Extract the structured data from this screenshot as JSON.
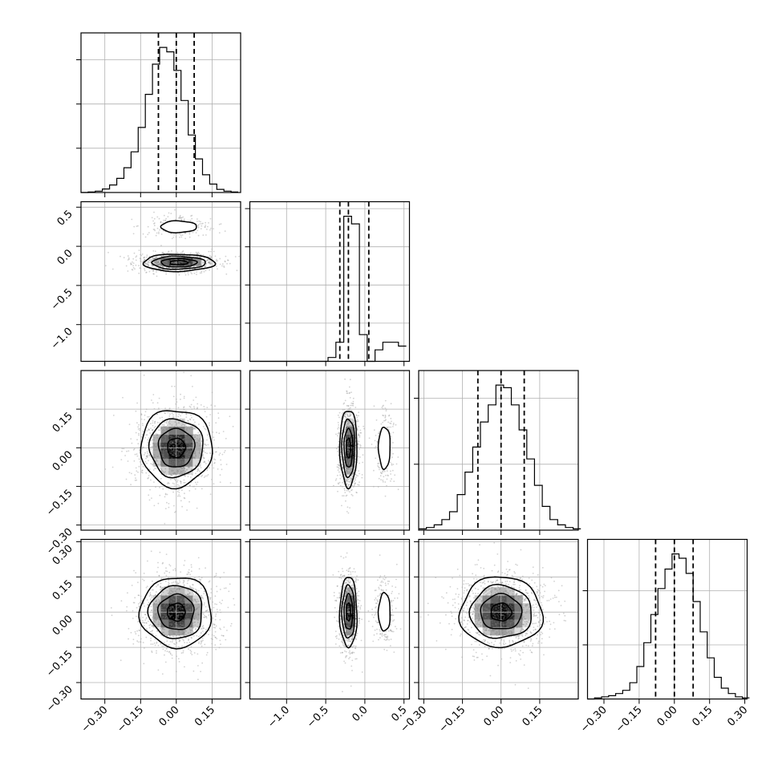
{
  "chart_data": {
    "type": "corner",
    "grid": true,
    "quantiles": [
      0.16,
      0.5,
      0.84
    ],
    "parameters": [
      {
        "index": 0,
        "range": [
          -0.4,
          0.27
        ],
        "x_ticks": [
          -0.3,
          -0.15,
          0.0,
          0.15
        ],
        "x_tick_labels": [
          "−0.30",
          "−0.15",
          "0.00",
          "0.15"
        ],
        "y_ticks": [],
        "y_tick_labels": []
      },
      {
        "index": 1,
        "range": [
          -1.47,
          0.57
        ],
        "x_ticks": [
          -1.0,
          -0.5,
          0.0,
          0.5
        ],
        "x_tick_labels": [
          "−1.0",
          "−0.5",
          "0.0",
          "0.5"
        ],
        "y_ticks": [
          0.5,
          0.0,
          -0.5,
          -1.0
        ],
        "y_tick_labels": [
          "0.5",
          "0.0",
          "−0.5",
          "−1.0"
        ]
      },
      {
        "index": 2,
        "range": [
          -0.32,
          0.3
        ],
        "x_ticks": [
          -0.3,
          -0.15,
          0.0,
          0.15
        ],
        "x_tick_labels": [
          "−0.30",
          "−0.15",
          "0.00",
          "0.15"
        ],
        "y_ticks": [
          0.15,
          0.0,
          -0.15,
          -0.3
        ],
        "y_tick_labels": [
          "0.15",
          "0.00",
          "−0.15",
          "−0.30"
        ]
      },
      {
        "index": 3,
        "range": [
          -0.37,
          0.31
        ],
        "x_ticks": [
          -0.3,
          -0.15,
          0.0,
          0.15,
          0.3
        ],
        "x_tick_labels": [
          "−0.30",
          "−0.15",
          "0.00",
          "0.15",
          "0.30"
        ],
        "y_ticks": [
          0.3,
          0.15,
          0.0,
          -0.15,
          -0.3
        ],
        "y_tick_labels": [
          "0.30",
          "0.15",
          "0.00",
          "−0.15",
          "−0.30"
        ]
      }
    ],
    "histograms": [
      {
        "param": 0,
        "quantile_values": [
          -0.075,
          0.0,
          0.075
        ],
        "bin_edges": [
          -0.4,
          -0.37,
          -0.34,
          -0.31,
          -0.28,
          -0.25,
          -0.22,
          -0.19,
          -0.16,
          -0.13,
          -0.1,
          -0.07,
          -0.04,
          -0.01,
          0.02,
          0.05,
          0.08,
          0.11,
          0.14,
          0.17,
          0.2,
          0.23,
          0.26
        ],
        "counts": [
          0,
          1,
          3,
          8,
          17,
          32,
          56,
          92,
          147,
          222,
          290,
          328,
          318,
          276,
          208,
          130,
          76,
          40,
          19,
          7,
          3,
          1
        ]
      },
      {
        "param": 1,
        "quantile_values": [
          -0.32,
          -0.21,
          0.05
        ],
        "bin_edges": [
          -1.47,
          -1.37,
          -1.27,
          -1.17,
          -1.07,
          -0.97,
          -0.87,
          -0.77,
          -0.67,
          -0.57,
          -0.47,
          -0.37,
          -0.27,
          -0.17,
          -0.07,
          0.03,
          0.13,
          0.23,
          0.33,
          0.43,
          0.53
        ],
        "counts": [
          0,
          0,
          0,
          0,
          0,
          0,
          0,
          0,
          0,
          0,
          1,
          5,
          38,
          36,
          7,
          0,
          3,
          5,
          5,
          4
        ]
      },
      {
        "param": 2,
        "quantile_values": [
          -0.09,
          0.0,
          0.09
        ],
        "bin_edges": [
          -0.32,
          -0.29,
          -0.26,
          -0.23,
          -0.2,
          -0.17,
          -0.14,
          -0.11,
          -0.08,
          -0.05,
          -0.02,
          0.01,
          0.04,
          0.07,
          0.1,
          0.13,
          0.16,
          0.19,
          0.22,
          0.25,
          0.28,
          0.31
        ],
        "counts": [
          1,
          2,
          4,
          8,
          14,
          27,
          44,
          63,
          82,
          95,
          110,
          108,
          95,
          76,
          54,
          34,
          18,
          8,
          4,
          2,
          1
        ]
      },
      {
        "param": 3,
        "quantile_values": [
          -0.08,
          0.0,
          0.08
        ],
        "bin_edges": [
          -0.37,
          -0.34,
          -0.31,
          -0.28,
          -0.25,
          -0.22,
          -0.19,
          -0.16,
          -0.13,
          -0.1,
          -0.07,
          -0.04,
          -0.01,
          0.02,
          0.05,
          0.08,
          0.11,
          0.14,
          0.17,
          0.2,
          0.23,
          0.26,
          0.29,
          0.32
        ],
        "counts": [
          0,
          1,
          2,
          3,
          5,
          8,
          15,
          30,
          52,
          78,
          102,
          120,
          134,
          130,
          116,
          90,
          62,
          38,
          20,
          10,
          5,
          2,
          1
        ]
      }
    ],
    "joint_panels": [
      {
        "x_param": 0,
        "y_param": 1,
        "clusters": [
          {
            "cx": 0.01,
            "cy": -0.21,
            "sx": 0.075,
            "sy": 0.055,
            "weight": 0.8
          },
          {
            "cx": 0.01,
            "cy": 0.25,
            "sx": 0.06,
            "sy": 0.06,
            "weight": 0.2
          }
        ]
      },
      {
        "x_param": 0,
        "y_param": 2,
        "clusters": [
          {
            "cx": 0.0,
            "cy": 0.0,
            "sx": 0.075,
            "sy": 0.075,
            "weight": 1.0
          }
        ]
      },
      {
        "x_param": 1,
        "y_param": 2,
        "clusters": [
          {
            "cx": -0.21,
            "cy": 0.0,
            "sx": 0.055,
            "sy": 0.075,
            "weight": 0.8
          },
          {
            "cx": 0.25,
            "cy": 0.0,
            "sx": 0.06,
            "sy": 0.065,
            "weight": 0.2
          }
        ]
      },
      {
        "x_param": 0,
        "y_param": 3,
        "clusters": [
          {
            "cx": 0.0,
            "cy": 0.0,
            "sx": 0.075,
            "sy": 0.075,
            "weight": 1.0
          }
        ]
      },
      {
        "x_param": 1,
        "y_param": 3,
        "clusters": [
          {
            "cx": -0.21,
            "cy": 0.0,
            "sx": 0.055,
            "sy": 0.075,
            "weight": 0.8
          },
          {
            "cx": 0.25,
            "cy": 0.0,
            "sx": 0.06,
            "sy": 0.065,
            "weight": 0.2
          }
        ]
      },
      {
        "x_param": 2,
        "y_param": 3,
        "clusters": [
          {
            "cx": 0.0,
            "cy": 0.0,
            "sx": 0.08,
            "sy": 0.075,
            "weight": 1.0
          }
        ]
      }
    ],
    "colors": {
      "line": "#000000",
      "grid": "#b0b0b0",
      "points": "#7f7f7f",
      "density": "#000000"
    }
  }
}
